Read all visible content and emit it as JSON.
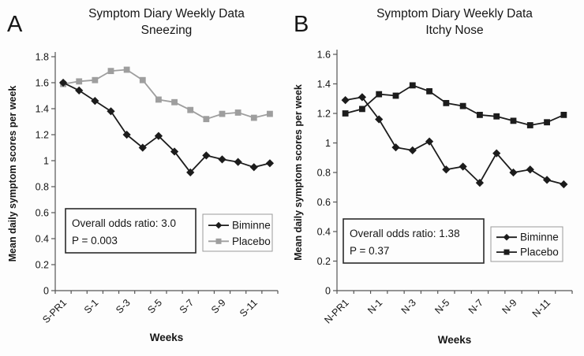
{
  "chart_data": [
    {
      "type": "line",
      "panel_label": "A",
      "title": "Symptom Diary Weekly Data",
      "subtitle": "Sneezing",
      "xlabel": "Weeks",
      "ylabel": "Mean daily symptom scores per week",
      "ylim": [
        0,
        1.8
      ],
      "ytick_labels": [
        "1.8",
        "1.6",
        "1.4",
        "1.2",
        "1",
        "0.8",
        "0.6",
        "0.4",
        "0.2",
        "0"
      ],
      "x_tick_labels": [
        "S-PR1",
        "S-1",
        "S-3",
        "S-5",
        "S-7",
        "S-9",
        "S-11"
      ],
      "x_label_indices": [
        0,
        2,
        4,
        6,
        8,
        10,
        12
      ],
      "n_points": 14,
      "grid": false,
      "legend_position": "right-middle",
      "series": [
        {
          "name": "Biminne",
          "marker": "diamond",
          "color": "#1c1c1c",
          "values": [
            1.6,
            1.54,
            1.46,
            1.38,
            1.2,
            1.1,
            1.19,
            1.07,
            0.91,
            1.04,
            1.01,
            0.99,
            0.95,
            0.98
          ]
        },
        {
          "name": "Placebo",
          "marker": "square",
          "color": "#9e9e9e",
          "values": [
            1.59,
            1.61,
            1.62,
            1.69,
            1.7,
            1.62,
            1.47,
            1.45,
            1.39,
            1.32,
            1.36,
            1.37,
            1.33,
            1.36
          ]
        }
      ],
      "annotation": {
        "line1": "Overall odds ratio: 3.0",
        "line2": "P = 0.003"
      }
    },
    {
      "type": "line",
      "panel_label": "B",
      "title": "Symptom Diary Weekly Data",
      "subtitle": "Itchy Nose",
      "xlabel": "Weeks",
      "ylabel": "Mean daily symptom scores per week",
      "ylim": [
        0,
        1.6
      ],
      "ytick_labels": [
        "1.6",
        "1.4",
        "1.2",
        "1",
        "0.8",
        "0.6",
        "0.4",
        "0.2",
        "0"
      ],
      "x_tick_labels": [
        "N-PR1",
        "N-1",
        "N-3",
        "N-5",
        "N-7",
        "N-9",
        "N-11"
      ],
      "x_label_indices": [
        0,
        2,
        4,
        6,
        8,
        10,
        12
      ],
      "n_points": 14,
      "grid": false,
      "legend_position": "right-middle",
      "series": [
        {
          "name": "Biminne",
          "marker": "diamond",
          "color": "#1c1c1c",
          "values": [
            1.29,
            1.31,
            1.16,
            0.97,
            0.95,
            1.01,
            0.82,
            0.84,
            0.73,
            0.93,
            0.8,
            0.82,
            0.75,
            0.72
          ]
        },
        {
          "name": "Placebo",
          "marker": "square",
          "color": "#1c1c1c",
          "values": [
            1.2,
            1.23,
            1.33,
            1.32,
            1.39,
            1.35,
            1.27,
            1.25,
            1.19,
            1.18,
            1.15,
            1.12,
            1.14,
            1.19
          ]
        }
      ],
      "annotation": {
        "line1": "Overall odds ratio: 1.38",
        "line2": "P = 0.37"
      }
    }
  ]
}
